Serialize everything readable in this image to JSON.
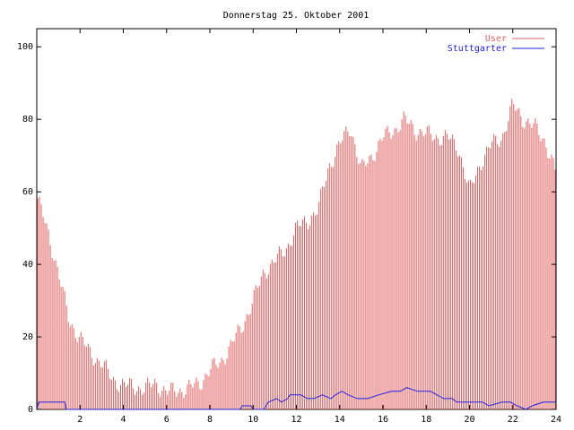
{
  "chart_data": {
    "type": "bar",
    "title": "Donnerstag 25. Oktober 2001",
    "xlabel": "",
    "ylabel": "",
    "xlim": [
      0,
      24
    ],
    "ylim": [
      0,
      105
    ],
    "x_ticks": [
      2,
      4,
      6,
      8,
      10,
      12,
      14,
      16,
      18,
      20,
      22,
      24
    ],
    "y_ticks": [
      0,
      20,
      40,
      60,
      80,
      100
    ],
    "grid": false,
    "legend_position": "top-right",
    "series": [
      {
        "name": "User",
        "type": "impulses",
        "color": "#e06060",
        "x": [
          0,
          0.5,
          1,
          1.5,
          2,
          2.5,
          3,
          3.5,
          4,
          4.5,
          5,
          5.5,
          6,
          6.5,
          7,
          7.5,
          8,
          8.5,
          9,
          9.5,
          10,
          10.5,
          11,
          11.5,
          12,
          12.5,
          13,
          13.5,
          14,
          14.5,
          15,
          15.5,
          16,
          16.5,
          17,
          17.5,
          18,
          18.5,
          19,
          19.5,
          20,
          20.5,
          21,
          21.5,
          22,
          22.5,
          23,
          23.5,
          24
        ],
        "values": [
          59,
          49,
          38,
          24,
          20,
          15,
          13,
          8,
          7,
          6,
          6,
          7,
          5,
          5,
          6,
          7,
          11,
          13,
          18,
          23,
          30,
          38,
          41,
          44,
          50,
          52,
          55,
          67,
          73,
          78,
          66,
          70,
          75,
          77,
          80,
          77,
          76,
          75,
          75,
          72,
          60,
          68,
          73,
          75,
          84,
          80,
          78,
          74,
          65
        ]
      },
      {
        "name": "Stuttgarter",
        "type": "line",
        "color": "#2020e0",
        "x": [
          0,
          0.1,
          1.3,
          1.35,
          9.4,
          9.5,
          9.9,
          10.0,
          10.5,
          10.7,
          11.1,
          11.3,
          11.6,
          11.7,
          12.2,
          12.5,
          12.8,
          13.2,
          13.6,
          13.8,
          14.1,
          14.4,
          14.8,
          15.3,
          15.8,
          16.4,
          16.8,
          17.1,
          17.6,
          18.2,
          18.5,
          18.8,
          19.2,
          19.4,
          20.0,
          20.6,
          20.9,
          21.5,
          21.9,
          22.2,
          22.6,
          22.9,
          23.4,
          24
        ],
        "values": [
          0,
          2,
          2,
          0,
          0,
          1,
          1,
          0,
          0,
          2,
          3,
          2,
          3,
          4,
          4,
          3,
          3,
          4,
          3,
          4,
          5,
          4,
          3,
          3,
          4,
          5,
          5,
          6,
          5,
          5,
          4,
          3,
          3,
          2,
          2,
          2,
          1,
          2,
          2,
          1,
          0,
          1,
          2,
          2
        ]
      }
    ]
  }
}
